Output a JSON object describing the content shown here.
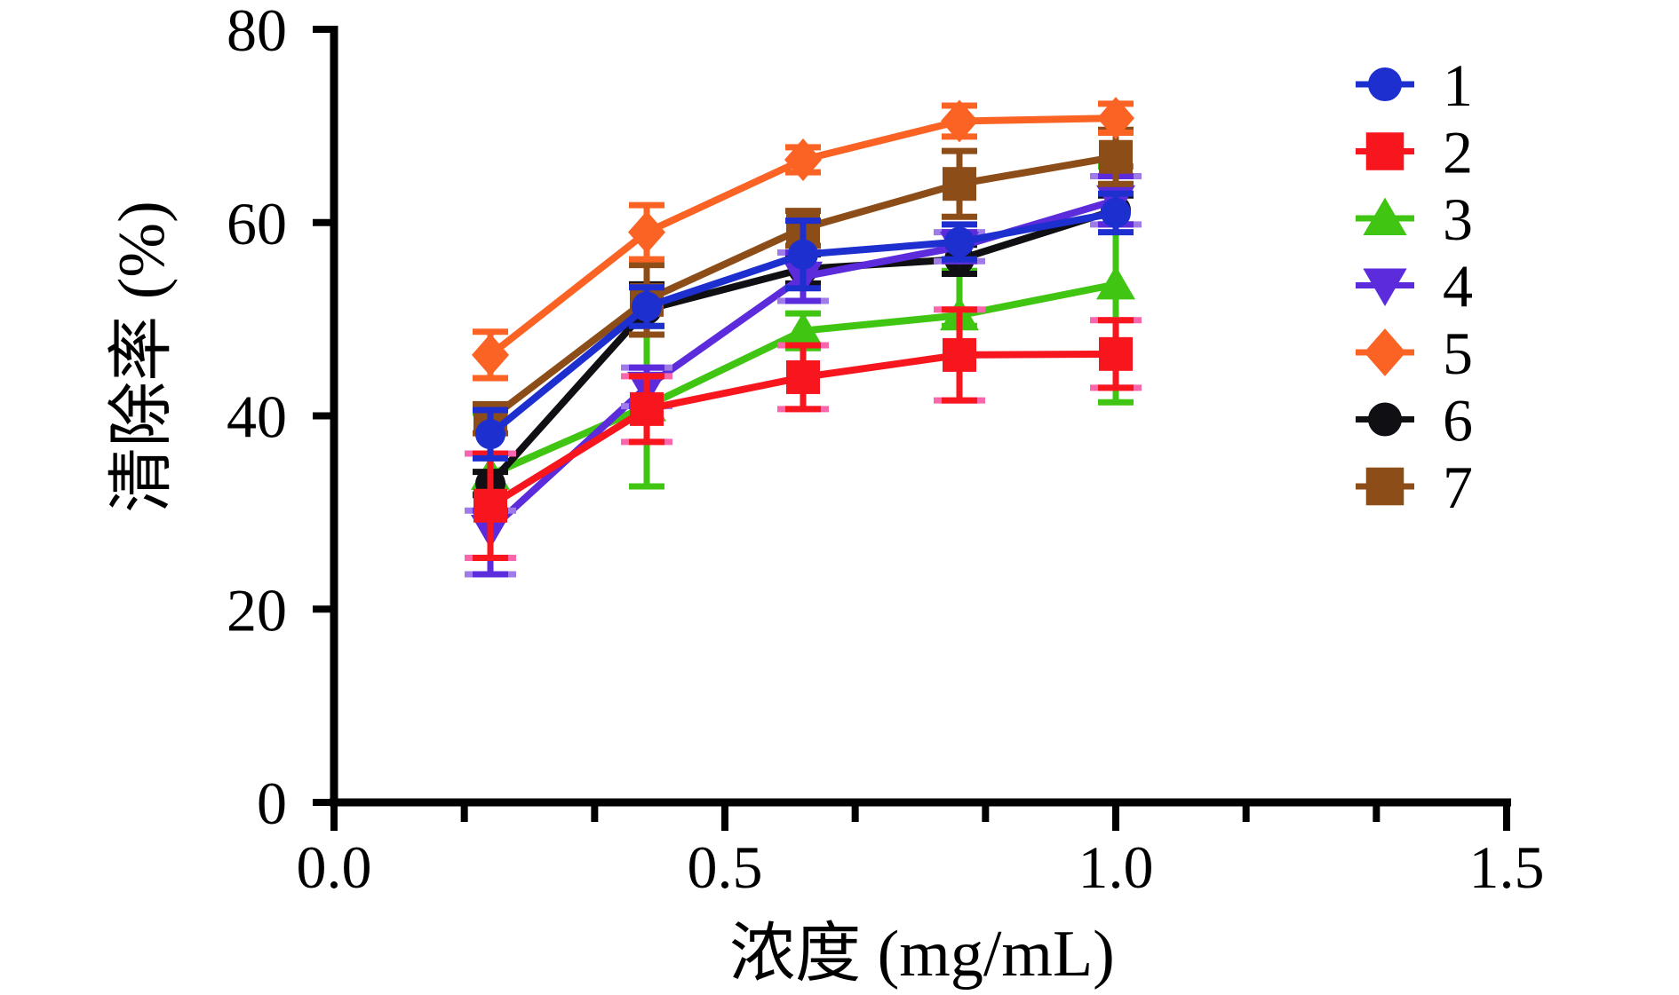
{
  "figure": {
    "background": "#ffffff",
    "axis_color": "#000000",
    "text_color": "#000000"
  },
  "chart_data": {
    "type": "line",
    "title": "",
    "xlabel": "浓度 (mg/mL)",
    "ylabel": "清除率 (%)",
    "xlim": [
      0,
      1.5
    ],
    "ylim": [
      0,
      80
    ],
    "grid": false,
    "legend_position": "upper-right",
    "x_major_ticks": [
      0.0,
      0.5,
      1.0,
      1.5
    ],
    "x_tick_labels": [
      "0.0",
      "0.5",
      "1.0",
      "1.5"
    ],
    "x_minor_division": 3,
    "y_ticks": [
      0,
      20,
      40,
      60,
      80
    ],
    "y_tick_labels": [
      "0",
      "20",
      "40",
      "60",
      "80"
    ],
    "x": [
      0.2,
      0.4,
      0.6,
      0.8,
      1.0
    ],
    "series": [
      {
        "name": "1",
        "marker": "circle",
        "color": "#1E2FD0",
        "values": [
          38.1,
          51.3,
          56.7,
          58.0,
          61.0
        ],
        "errors": [
          2.5,
          2.0,
          3.5,
          1.8,
          2.0
        ]
      },
      {
        "name": "2",
        "marker": "square",
        "color": "#F7161D",
        "cap_underlay": "#F966AC",
        "values": [
          30.7,
          40.7,
          44.0,
          46.3,
          46.4
        ],
        "errors": [
          5.4,
          3.4,
          3.3,
          4.7,
          3.5
        ]
      },
      {
        "name": "3",
        "marker": "triangle-up",
        "color": "#41C513",
        "values": [
          33.9,
          41.0,
          48.8,
          50.4,
          53.6
        ],
        "errors": [
          [
            2.0,
            6.4
          ],
          8.3,
          1.8,
          [
            1.1,
            4.6
          ],
          12.2
        ]
      },
      {
        "name": "4",
        "marker": "triangle-down",
        "color": "#5C2BDC",
        "cap_underlay": "#9F7BE9",
        "values": [
          28.2,
          43.0,
          54.4,
          57.5,
          62.3
        ],
        "errors": [
          [
            4.6,
            2.0
          ],
          2.0,
          2.5,
          1.5,
          2.5
        ]
      },
      {
        "name": "5",
        "marker": "diamond",
        "color": "#FA6324",
        "values": [
          46.3,
          59.0,
          66.5,
          70.5,
          70.8
        ],
        "errors": [
          2.4,
          2.8,
          1.3,
          1.6,
          1.5
        ]
      },
      {
        "name": "6",
        "marker": "circle",
        "color": "#101014",
        "values": [
          33.0,
          51.0,
          55.2,
          56.2,
          61.3
        ],
        "errors": [
          1.2,
          2.6,
          1.5,
          1.5,
          1.5
        ]
      },
      {
        "name": "7",
        "marker": "square",
        "color": "#8D4D18",
        "values": [
          39.7,
          52.0,
          59.4,
          64.0,
          66.8
        ],
        "errors": [
          1.5,
          3.6,
          1.8,
          3.4,
          2.8
        ]
      }
    ],
    "draw_order": [
      "3",
      "6",
      "4",
      "2",
      "7",
      "1",
      "5"
    ],
    "legend_labels": [
      "1",
      "2",
      "3",
      "4",
      "5",
      "6",
      "7"
    ]
  }
}
